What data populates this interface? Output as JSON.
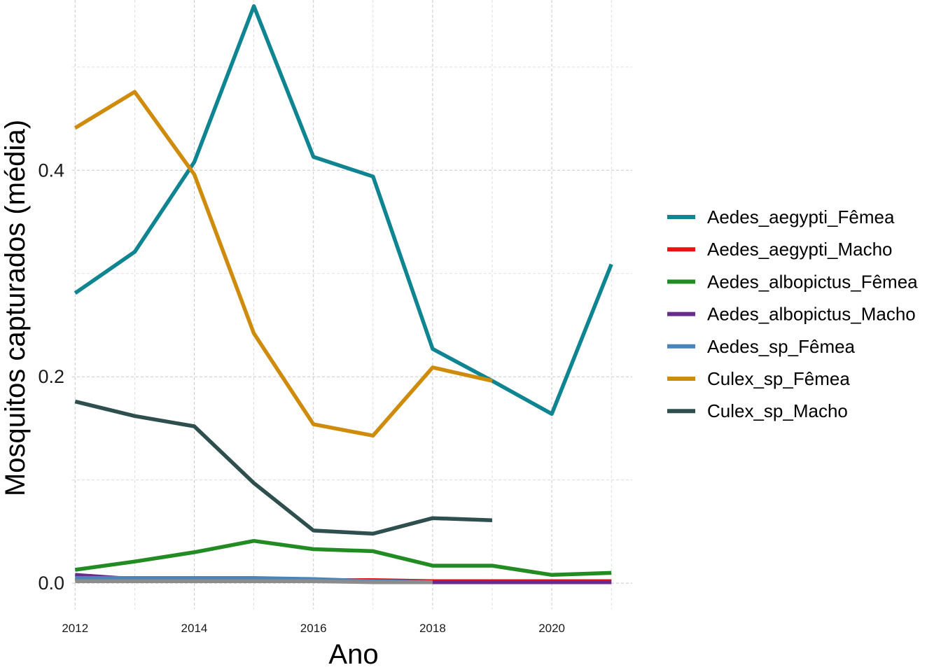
{
  "chart_data": {
    "type": "line",
    "title": "",
    "xlabel": "Ano",
    "ylabel": "Mosquitos capturados (média)",
    "xlim": [
      2011.95,
      2021.35
    ],
    "ylim": [
      -0.025,
      0.565
    ],
    "x_ticks": [
      2012,
      2014,
      2016,
      2018,
      2020
    ],
    "x_tick_labels": [
      "2012",
      "2014",
      "2016",
      "2018",
      "2020"
    ],
    "y_ticks": [
      0.0,
      0.2,
      0.4
    ],
    "y_tick_labels": [
      "0.0",
      "0.2",
      "0.4"
    ],
    "grid": true,
    "legend_position": "right",
    "series": [
      {
        "name": "Aedes_aegypti_Fêmea",
        "color": "#0f8591",
        "x": [
          2012,
          2013,
          2014,
          2015,
          2016,
          2017,
          2018,
          2019,
          2020,
          2021
        ],
        "y": [
          0.281,
          0.321,
          0.408,
          0.559,
          0.413,
          0.394,
          0.227,
          0.196,
          0.164,
          0.309
        ]
      },
      {
        "name": "Aedes_aegypti_Macho",
        "color": "#ee1111",
        "x": [
          2012,
          2013,
          2014,
          2015,
          2016,
          2017,
          2018,
          2019,
          2020,
          2021
        ],
        "y": [
          0.004,
          0.003,
          0.003,
          0.003,
          0.003,
          0.003,
          0.002,
          0.002,
          0.002,
          0.002
        ]
      },
      {
        "name": "Aedes_albopictus_Fêmea",
        "color": "#228b22",
        "x": [
          2012,
          2013,
          2014,
          2015,
          2016,
          2017,
          2018,
          2019,
          2020,
          2021
        ],
        "y": [
          0.013,
          0.021,
          0.03,
          0.041,
          0.033,
          0.031,
          0.017,
          0.017,
          0.008,
          0.01
        ]
      },
      {
        "name": "Aedes_albopictus_Macho",
        "color": "#6a2c8c",
        "x": [
          2012,
          2013,
          2014,
          2015,
          2016,
          2017,
          2018,
          2019,
          2020,
          2021
        ],
        "y": [
          0.008,
          0.004,
          0.004,
          0.004,
          0.003,
          0.002,
          0.001,
          0.001,
          0.001,
          0.001
        ]
      },
      {
        "name": "Aedes_sp_Fêmea",
        "color": "#4a84b8",
        "x": [
          2012,
          2013,
          2014,
          2015,
          2016,
          2017,
          2018
        ],
        "y": [
          0.005,
          0.005,
          0.005,
          0.005,
          0.004,
          0.002,
          0.001
        ]
      },
      {
        "name": "Culex_sp_Fêmea",
        "color": "#cf8c0c",
        "x": [
          2012,
          2013,
          2014,
          2015,
          2016,
          2017,
          2018,
          2019
        ],
        "y": [
          0.441,
          0.476,
          0.396,
          0.242,
          0.154,
          0.143,
          0.209,
          0.196
        ]
      },
      {
        "name": "Culex_sp_Macho",
        "color": "#2f4f4f",
        "x": [
          2012,
          2013,
          2014,
          2015,
          2016,
          2017,
          2018,
          2019
        ],
        "y": [
          0.176,
          0.162,
          0.152,
          0.097,
          0.051,
          0.048,
          0.063,
          0.061
        ]
      },
      {
        "name": "",
        "color": "#8c8c8c",
        "x": [
          2012,
          2013,
          2014,
          2015,
          2016,
          2017,
          2018
        ],
        "y": [
          0.002,
          0.002,
          0.002,
          0.002,
          0.002,
          0.001,
          0.001
        ]
      }
    ]
  }
}
